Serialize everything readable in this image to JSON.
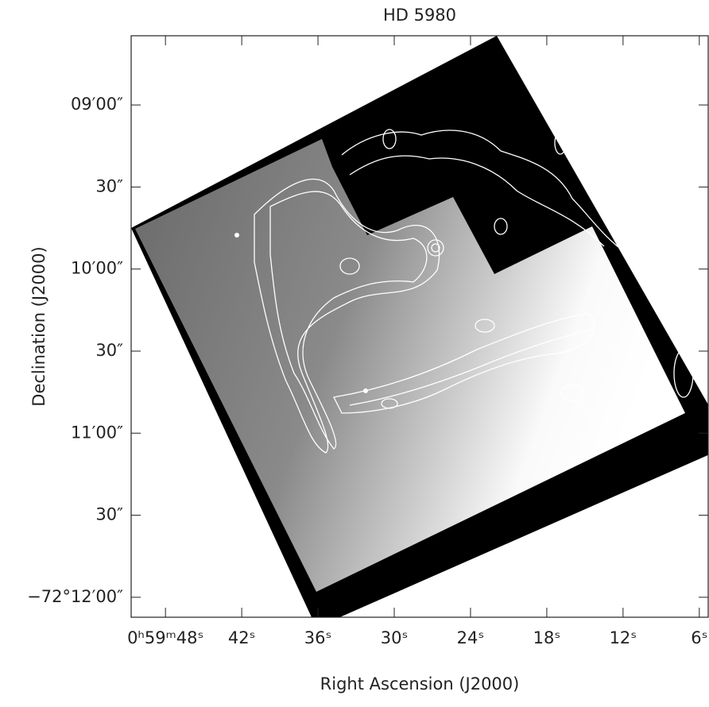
{
  "chart_data": {
    "type": "image",
    "title": "HD 5980",
    "x_label": "Right Ascension (J2000)",
    "y_label": "Declination (J2000)",
    "xlim": [
      50.7,
      5.3
    ],
    "ylim": [
      514.7,
      727.3
    ],
    "xticks": [
      {
        "value": 48,
        "label": "0ʰ59ᵐ48ˢ"
      },
      {
        "value": 42,
        "label": "42ˢ"
      },
      {
        "value": 36,
        "label": "36ˢ"
      },
      {
        "value": 30,
        "label": "30ˢ"
      },
      {
        "value": 24,
        "label": "24ˢ"
      },
      {
        "value": 18,
        "label": "18ˢ"
      },
      {
        "value": 12,
        "label": "12ˢ"
      },
      {
        "value": 6,
        "label": "6ˢ"
      }
    ],
    "yticks": [
      {
        "value": 540,
        "label": "09′00″"
      },
      {
        "value": 570,
        "label": "30″"
      },
      {
        "value": 600,
        "label": "10′00″"
      },
      {
        "value": 630,
        "label": "30″"
      },
      {
        "value": 660,
        "label": "11′00″"
      },
      {
        "value": 690,
        "label": "30″"
      },
      {
        "value": 720,
        "label": "−72°12′00″"
      }
    ]
  }
}
